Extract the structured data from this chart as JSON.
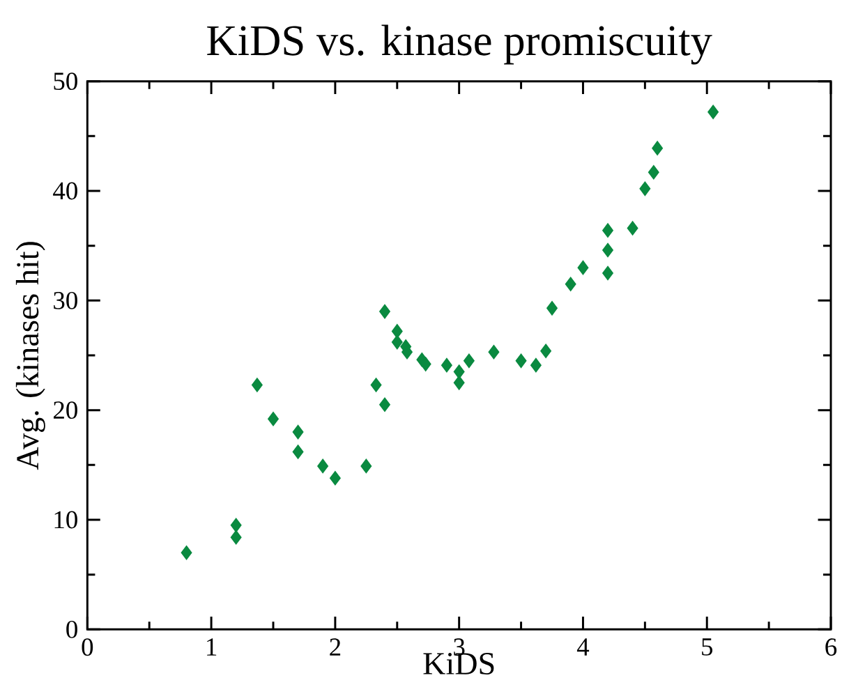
{
  "chart_data": {
    "type": "scatter",
    "title": "KiDS vs. kinase promiscuity",
    "xlabel": "KiDS",
    "ylabel": "Avg. (kinases hit)",
    "x": [
      0.8,
      1.2,
      1.2,
      1.37,
      1.5,
      1.7,
      1.7,
      1.9,
      2.0,
      2.25,
      2.33,
      2.4,
      2.4,
      2.5,
      2.5,
      2.57,
      2.58,
      2.7,
      2.73,
      2.9,
      3.0,
      3.0,
      3.08,
      3.28,
      3.5,
      3.62,
      3.7,
      3.75,
      3.9,
      4.0,
      4.2,
      4.2,
      4.2,
      4.4,
      4.5,
      4.57,
      4.6,
      5.05
    ],
    "values": [
      7.0,
      8.4,
      9.5,
      22.3,
      19.2,
      18.0,
      16.2,
      14.9,
      13.8,
      14.9,
      22.3,
      29.0,
      20.5,
      27.2,
      26.2,
      25.8,
      25.3,
      24.6,
      24.2,
      24.1,
      23.5,
      22.5,
      24.5,
      25.3,
      24.5,
      24.1,
      25.4,
      29.3,
      31.5,
      33.0,
      36.4,
      34.6,
      32.5,
      36.6,
      40.2,
      41.7,
      43.9,
      47.2
    ],
    "color": "#0a8a40",
    "marker": "diamond",
    "xlim": [
      0,
      6
    ],
    "ylim": [
      0,
      50
    ],
    "xticks": [
      0,
      1,
      2,
      3,
      4,
      5,
      6
    ],
    "yticks": [
      0,
      10,
      20,
      30,
      40,
      50
    ],
    "grid": false
  }
}
